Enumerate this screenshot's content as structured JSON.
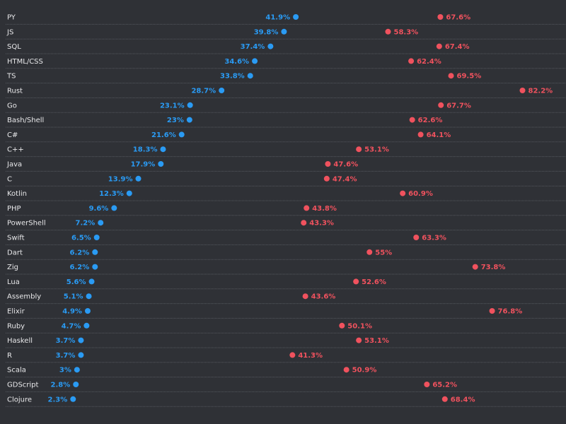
{
  "colors": {
    "background": "#2f3136",
    "low_point": "#2a9bf4",
    "high_point": "#f0525e",
    "label_text": "#e8e8ea",
    "divider": "#56595f"
  },
  "chart_data": {
    "type": "dumbbell",
    "x_range": [
      0,
      100
    ],
    "grid": false,
    "legend": "none",
    "categories": [
      "PY",
      "JS",
      "SQL",
      "HTML/CSS",
      "TS",
      "Rust",
      "Go",
      "Bash/Shell",
      "C#",
      "C++",
      "Java",
      "C",
      "Kotlin",
      "PHP",
      "PowerShell",
      "Swift",
      "Dart",
      "Zig",
      "Lua",
      "Assembly",
      "Elixir",
      "Ruby",
      "Haskell",
      "R",
      "Scala",
      "GDScript",
      "Clojure"
    ],
    "series": [
      {
        "values": [
          41.9,
          39.8,
          37.4,
          34.6,
          33.8,
          28.7,
          23.1,
          23,
          21.6,
          18.3,
          17.9,
          13.9,
          12.3,
          9.6,
          7.2,
          6.5,
          6.2,
          6.2,
          5.6,
          5.1,
          4.9,
          4.7,
          3.7,
          3.7,
          3,
          2.8,
          2.3
        ],
        "labels": [
          "41.9%",
          "39.8%",
          "37.4%",
          "34.6%",
          "33.8%",
          "28.7%",
          "23.1%",
          "23%",
          "21.6%",
          "18.3%",
          "17.9%",
          "13.9%",
          "12.3%",
          "9.6%",
          "7.2%",
          "6.5%",
          "6.2%",
          "6.2%",
          "5.6%",
          "5.1%",
          "4.9%",
          "4.7%",
          "3.7%",
          "3.7%",
          "3%",
          "2.8%",
          "2.3%"
        ]
      },
      {
        "values": [
          67.6,
          58.3,
          67.4,
          62.4,
          69.5,
          82.2,
          67.7,
          62.6,
          64.1,
          53.1,
          47.6,
          47.4,
          60.9,
          43.8,
          43.3,
          63.3,
          55,
          73.8,
          52.6,
          43.6,
          76.8,
          50.1,
          53.1,
          41.3,
          50.9,
          65.2,
          68.4
        ],
        "labels": [
          "67.6%",
          "58.3%",
          "67.4%",
          "62.4%",
          "69.5%",
          "82.2%",
          "67.7%",
          "62.6%",
          "64.1%",
          "53.1%",
          "47.6%",
          "47.4%",
          "60.9%",
          "43.8%",
          "43.3%",
          "63.3%",
          "55%",
          "73.8%",
          "52.6%",
          "43.6%",
          "76.8%",
          "50.1%",
          "53.1%",
          "41.3%",
          "50.9%",
          "65.2%",
          "68.4%"
        ]
      }
    ]
  }
}
